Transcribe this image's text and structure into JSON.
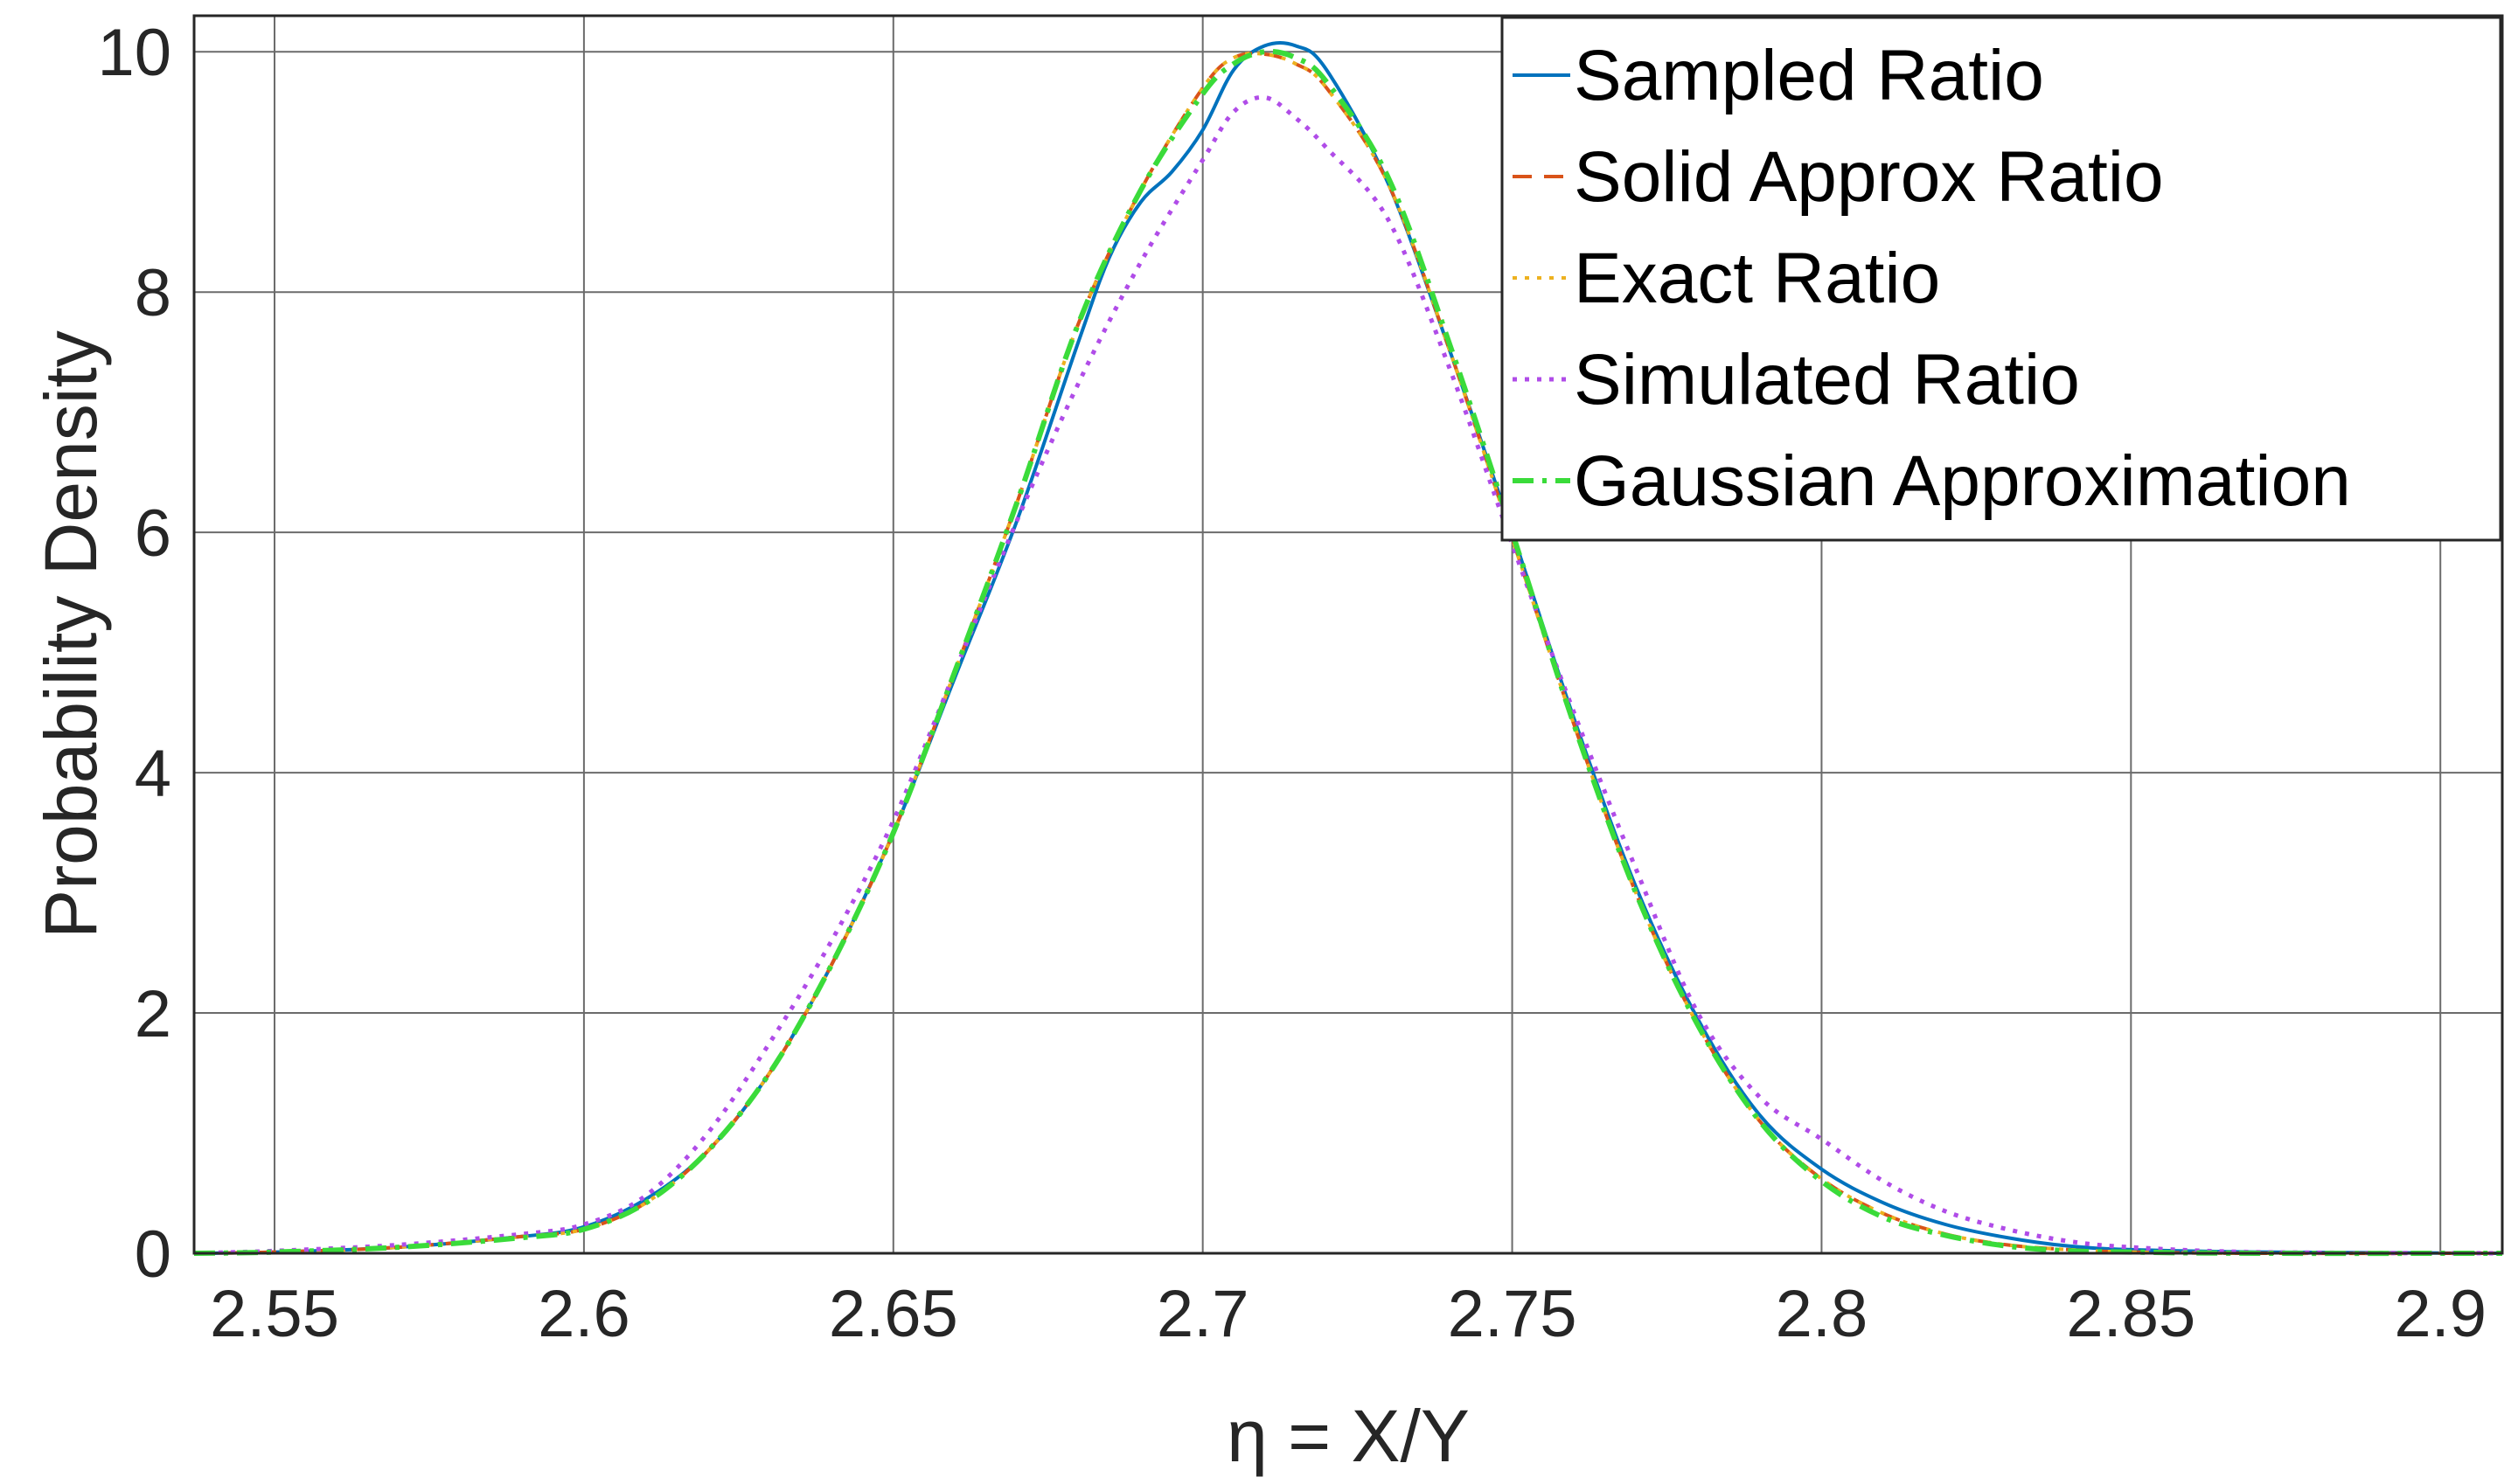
{
  "chart_data": {
    "type": "line",
    "title": "",
    "xlabel": "η = X/Y",
    "ylabel": "Probability Density",
    "xlim": [
      2.537,
      2.91
    ],
    "ylim": [
      0,
      10.3
    ],
    "xticks": [
      2.55,
      2.6,
      2.65,
      2.7,
      2.75,
      2.8,
      2.85,
      2.9
    ],
    "xtick_labels": [
      "2.55",
      "2.6",
      "2.65",
      "2.7",
      "2.75",
      "2.8",
      "2.85",
      "2.9"
    ],
    "yticks": [
      0,
      2,
      4,
      6,
      8,
      10
    ],
    "ytick_labels": [
      "0",
      "2",
      "4",
      "6",
      "8",
      "10"
    ],
    "grid": true,
    "legend_position": "top-right",
    "series": [
      {
        "name": "Sampled Ratio",
        "color": "#0072BD",
        "dash": "solid",
        "x": [
          2.537,
          2.55,
          2.57,
          2.59,
          2.6,
          2.61,
          2.62,
          2.63,
          2.64,
          2.65,
          2.66,
          2.67,
          2.68,
          2.685,
          2.69,
          2.695,
          2.7,
          2.705,
          2.71,
          2.715,
          2.72,
          2.73,
          2.74,
          2.75,
          2.76,
          2.77,
          2.78,
          2.79,
          2.8,
          2.81,
          2.82,
          2.83,
          2.84,
          2.85,
          2.87,
          2.91
        ],
        "y": [
          0,
          0.01,
          0.05,
          0.14,
          0.22,
          0.45,
          0.85,
          1.5,
          2.4,
          3.5,
          4.8,
          6.1,
          7.6,
          8.3,
          8.75,
          9.0,
          9.35,
          9.85,
          10.05,
          10.05,
          9.85,
          8.9,
          7.5,
          6.0,
          4.45,
          3.05,
          1.95,
          1.15,
          0.7,
          0.42,
          0.24,
          0.13,
          0.06,
          0.03,
          0.01,
          0
        ]
      },
      {
        "name": "Solid Approx Ratio",
        "color": "#D95319",
        "dash": "dashed",
        "x": [
          2.537,
          2.55,
          2.57,
          2.59,
          2.6,
          2.61,
          2.62,
          2.63,
          2.64,
          2.65,
          2.66,
          2.67,
          2.68,
          2.69,
          2.7,
          2.705,
          2.71,
          2.715,
          2.72,
          2.73,
          2.74,
          2.75,
          2.76,
          2.77,
          2.78,
          2.79,
          2.8,
          2.81,
          2.82,
          2.83,
          2.84,
          2.85,
          2.87,
          2.91
        ],
        "y": [
          0,
          0.01,
          0.05,
          0.14,
          0.2,
          0.42,
          0.85,
          1.5,
          2.4,
          3.5,
          4.85,
          6.25,
          7.75,
          8.85,
          9.7,
          9.95,
          9.98,
          9.9,
          9.7,
          8.9,
          7.5,
          5.95,
          4.4,
          3.0,
          1.9,
          1.1,
          0.62,
          0.33,
          0.16,
          0.07,
          0.03,
          0.01,
          0,
          0
        ]
      },
      {
        "name": "Exact Ratio",
        "color": "#EDB120",
        "dash": "dotted",
        "x": [
          2.537,
          2.55,
          2.57,
          2.59,
          2.6,
          2.61,
          2.62,
          2.63,
          2.64,
          2.65,
          2.66,
          2.67,
          2.68,
          2.69,
          2.7,
          2.705,
          2.71,
          2.715,
          2.72,
          2.73,
          2.74,
          2.75,
          2.76,
          2.77,
          2.78,
          2.79,
          2.8,
          2.81,
          2.82,
          2.83,
          2.84,
          2.85,
          2.87,
          2.91
        ],
        "y": [
          0,
          0.01,
          0.05,
          0.14,
          0.2,
          0.42,
          0.85,
          1.5,
          2.4,
          3.5,
          4.85,
          6.25,
          7.75,
          8.85,
          9.7,
          9.95,
          9.98,
          9.9,
          9.7,
          8.9,
          7.5,
          5.95,
          4.4,
          3.0,
          1.9,
          1.1,
          0.62,
          0.33,
          0.16,
          0.07,
          0.03,
          0.01,
          0,
          0
        ]
      },
      {
        "name": "Simulated Ratio",
        "color": "#B04CE8",
        "dash": "dotted",
        "x": [
          2.537,
          2.55,
          2.57,
          2.59,
          2.6,
          2.61,
          2.62,
          2.63,
          2.64,
          2.65,
          2.66,
          2.67,
          2.68,
          2.69,
          2.7,
          2.705,
          2.71,
          2.715,
          2.72,
          2.73,
          2.74,
          2.75,
          2.76,
          2.77,
          2.78,
          2.79,
          2.8,
          2.81,
          2.82,
          2.83,
          2.84,
          2.85,
          2.87,
          2.91
        ],
        "y": [
          0,
          0.02,
          0.07,
          0.16,
          0.24,
          0.48,
          1.0,
          1.75,
          2.6,
          3.6,
          4.85,
          6.1,
          7.25,
          8.25,
          9.1,
          9.5,
          9.62,
          9.45,
          9.2,
          8.6,
          7.35,
          5.9,
          4.5,
          3.2,
          2.0,
          1.3,
          0.95,
          0.6,
          0.35,
          0.2,
          0.1,
          0.05,
          0.01,
          0
        ]
      },
      {
        "name": "Gaussian Approximation",
        "color": "#3ADB3A",
        "dash": "dashdot",
        "x": [
          2.537,
          2.55,
          2.57,
          2.59,
          2.6,
          2.61,
          2.62,
          2.63,
          2.64,
          2.65,
          2.66,
          2.67,
          2.68,
          2.69,
          2.7,
          2.705,
          2.71,
          2.715,
          2.72,
          2.73,
          2.74,
          2.75,
          2.76,
          2.77,
          2.78,
          2.79,
          2.8,
          2.81,
          2.82,
          2.83,
          2.84,
          2.85,
          2.87,
          2.91
        ],
        "y": [
          0,
          0.01,
          0.05,
          0.13,
          0.2,
          0.42,
          0.85,
          1.5,
          2.4,
          3.5,
          4.85,
          6.25,
          7.75,
          8.85,
          9.65,
          9.9,
          10.0,
          9.95,
          9.75,
          8.95,
          7.55,
          6.0,
          4.4,
          3.0,
          1.9,
          1.1,
          0.6,
          0.3,
          0.15,
          0.06,
          0.02,
          0.01,
          0,
          0
        ]
      }
    ]
  }
}
